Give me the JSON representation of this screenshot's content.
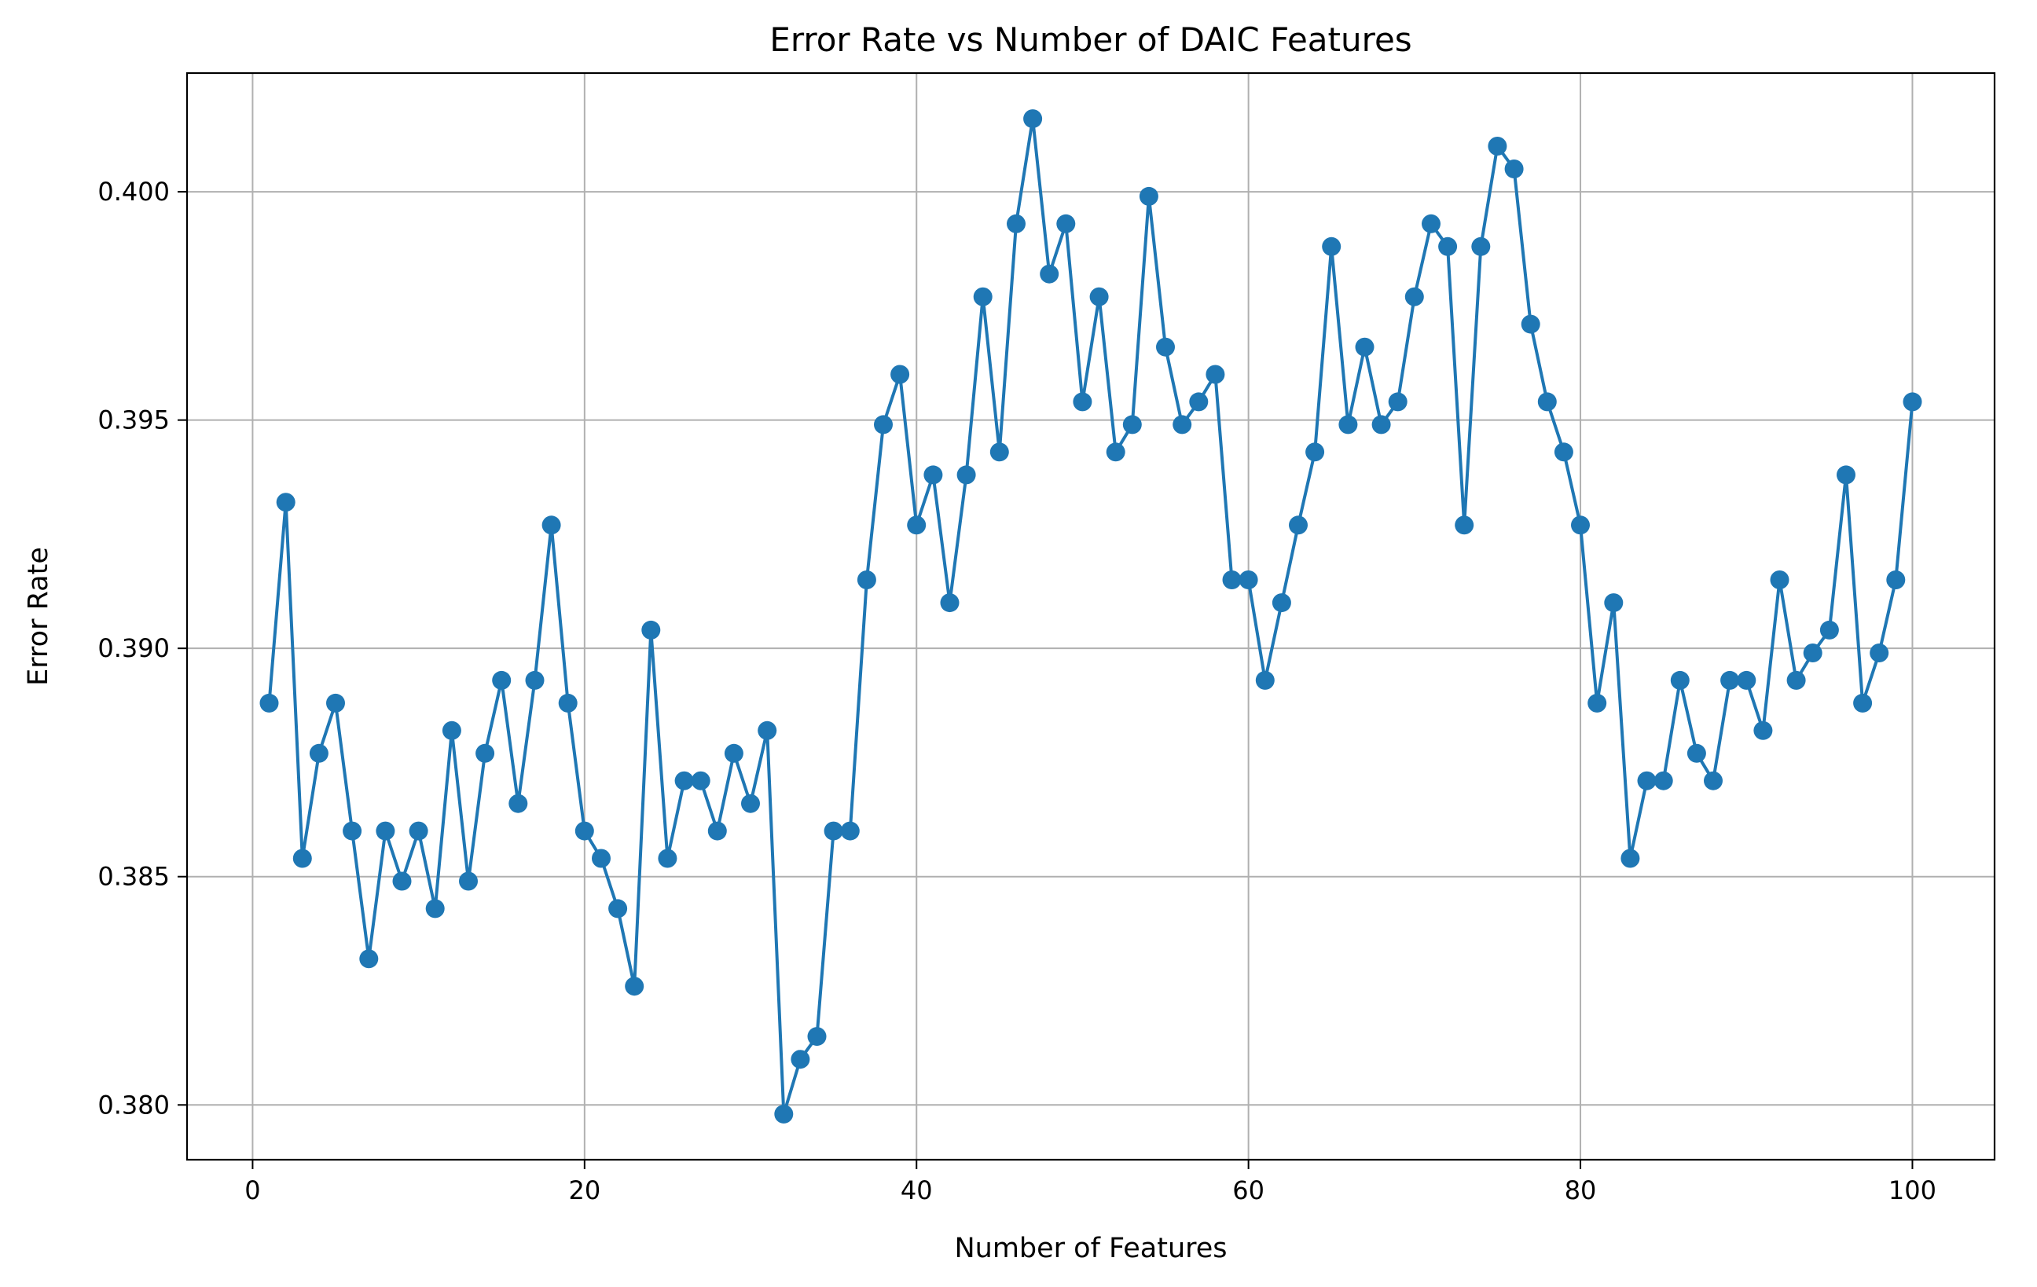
{
  "chart_data": {
    "type": "line",
    "title": "Error Rate vs Number of DAIC Features",
    "xlabel": "Number of Features",
    "ylabel": "Error Rate",
    "xlim": [
      -3.95,
      104.95
    ],
    "ylim": [
      0.3788,
      0.4026
    ],
    "xticks": [
      0,
      20,
      40,
      60,
      80,
      100
    ],
    "xtick_labels": [
      "0",
      "20",
      "40",
      "60",
      "80",
      "100"
    ],
    "yticks": [
      0.38,
      0.385,
      0.39,
      0.395,
      0.4
    ],
    "ytick_labels": [
      "0.380",
      "0.385",
      "0.390",
      "0.395",
      "0.400"
    ],
    "grid": true,
    "legend": false,
    "series": [
      {
        "color": "#1f77b4",
        "marker": "circle",
        "x": [
          1,
          2,
          3,
          4,
          5,
          6,
          7,
          8,
          9,
          10,
          11,
          12,
          13,
          14,
          15,
          16,
          17,
          18,
          19,
          20,
          21,
          22,
          23,
          24,
          25,
          26,
          27,
          28,
          29,
          30,
          31,
          32,
          33,
          34,
          35,
          36,
          37,
          38,
          39,
          40,
          41,
          42,
          43,
          44,
          45,
          46,
          47,
          48,
          49,
          50,
          51,
          52,
          53,
          54,
          55,
          56,
          57,
          58,
          59,
          60,
          61,
          62,
          63,
          64,
          65,
          66,
          67,
          68,
          69,
          70,
          71,
          72,
          73,
          74,
          75,
          76,
          77,
          78,
          79,
          80,
          81,
          82,
          83,
          84,
          85,
          86,
          87,
          88,
          89,
          90,
          91,
          92,
          93,
          94,
          95,
          96,
          97,
          98,
          99,
          100
        ],
        "y": [
          0.3888,
          0.3932,
          0.3854,
          0.3877,
          0.3888,
          0.386,
          0.3832,
          0.386,
          0.3849,
          0.386,
          0.3843,
          0.3882,
          0.3849,
          0.3877,
          0.3893,
          0.3866,
          0.3893,
          0.3927,
          0.3888,
          0.386,
          0.3854,
          0.3843,
          0.3826,
          0.3904,
          0.3854,
          0.3871,
          0.3871,
          0.386,
          0.3877,
          0.3866,
          0.3882,
          0.3798,
          0.381,
          0.3815,
          0.386,
          0.386,
          0.3915,
          0.3949,
          0.396,
          0.3927,
          0.3938,
          0.391,
          0.3938,
          0.3977,
          0.3943,
          0.3993,
          0.4016,
          0.3982,
          0.3993,
          0.3954,
          0.3977,
          0.3943,
          0.3949,
          0.3999,
          0.3966,
          0.3949,
          0.3954,
          0.396,
          0.3915,
          0.3915,
          0.3893,
          0.391,
          0.3927,
          0.3943,
          0.3988,
          0.3949,
          0.3966,
          0.3949,
          0.3954,
          0.3977,
          0.3993,
          0.3988,
          0.3927,
          0.3988,
          0.401,
          0.4005,
          0.3971,
          0.3954,
          0.3943,
          0.3927,
          0.3888,
          0.391,
          0.3854,
          0.3871,
          0.3871,
          0.3893,
          0.3877,
          0.3871,
          0.3893,
          0.3893,
          0.3882,
          0.3915,
          0.3893,
          0.3899,
          0.3904,
          0.3938,
          0.3888,
          0.3899,
          0.3915,
          0.3954
        ]
      }
    ]
  }
}
